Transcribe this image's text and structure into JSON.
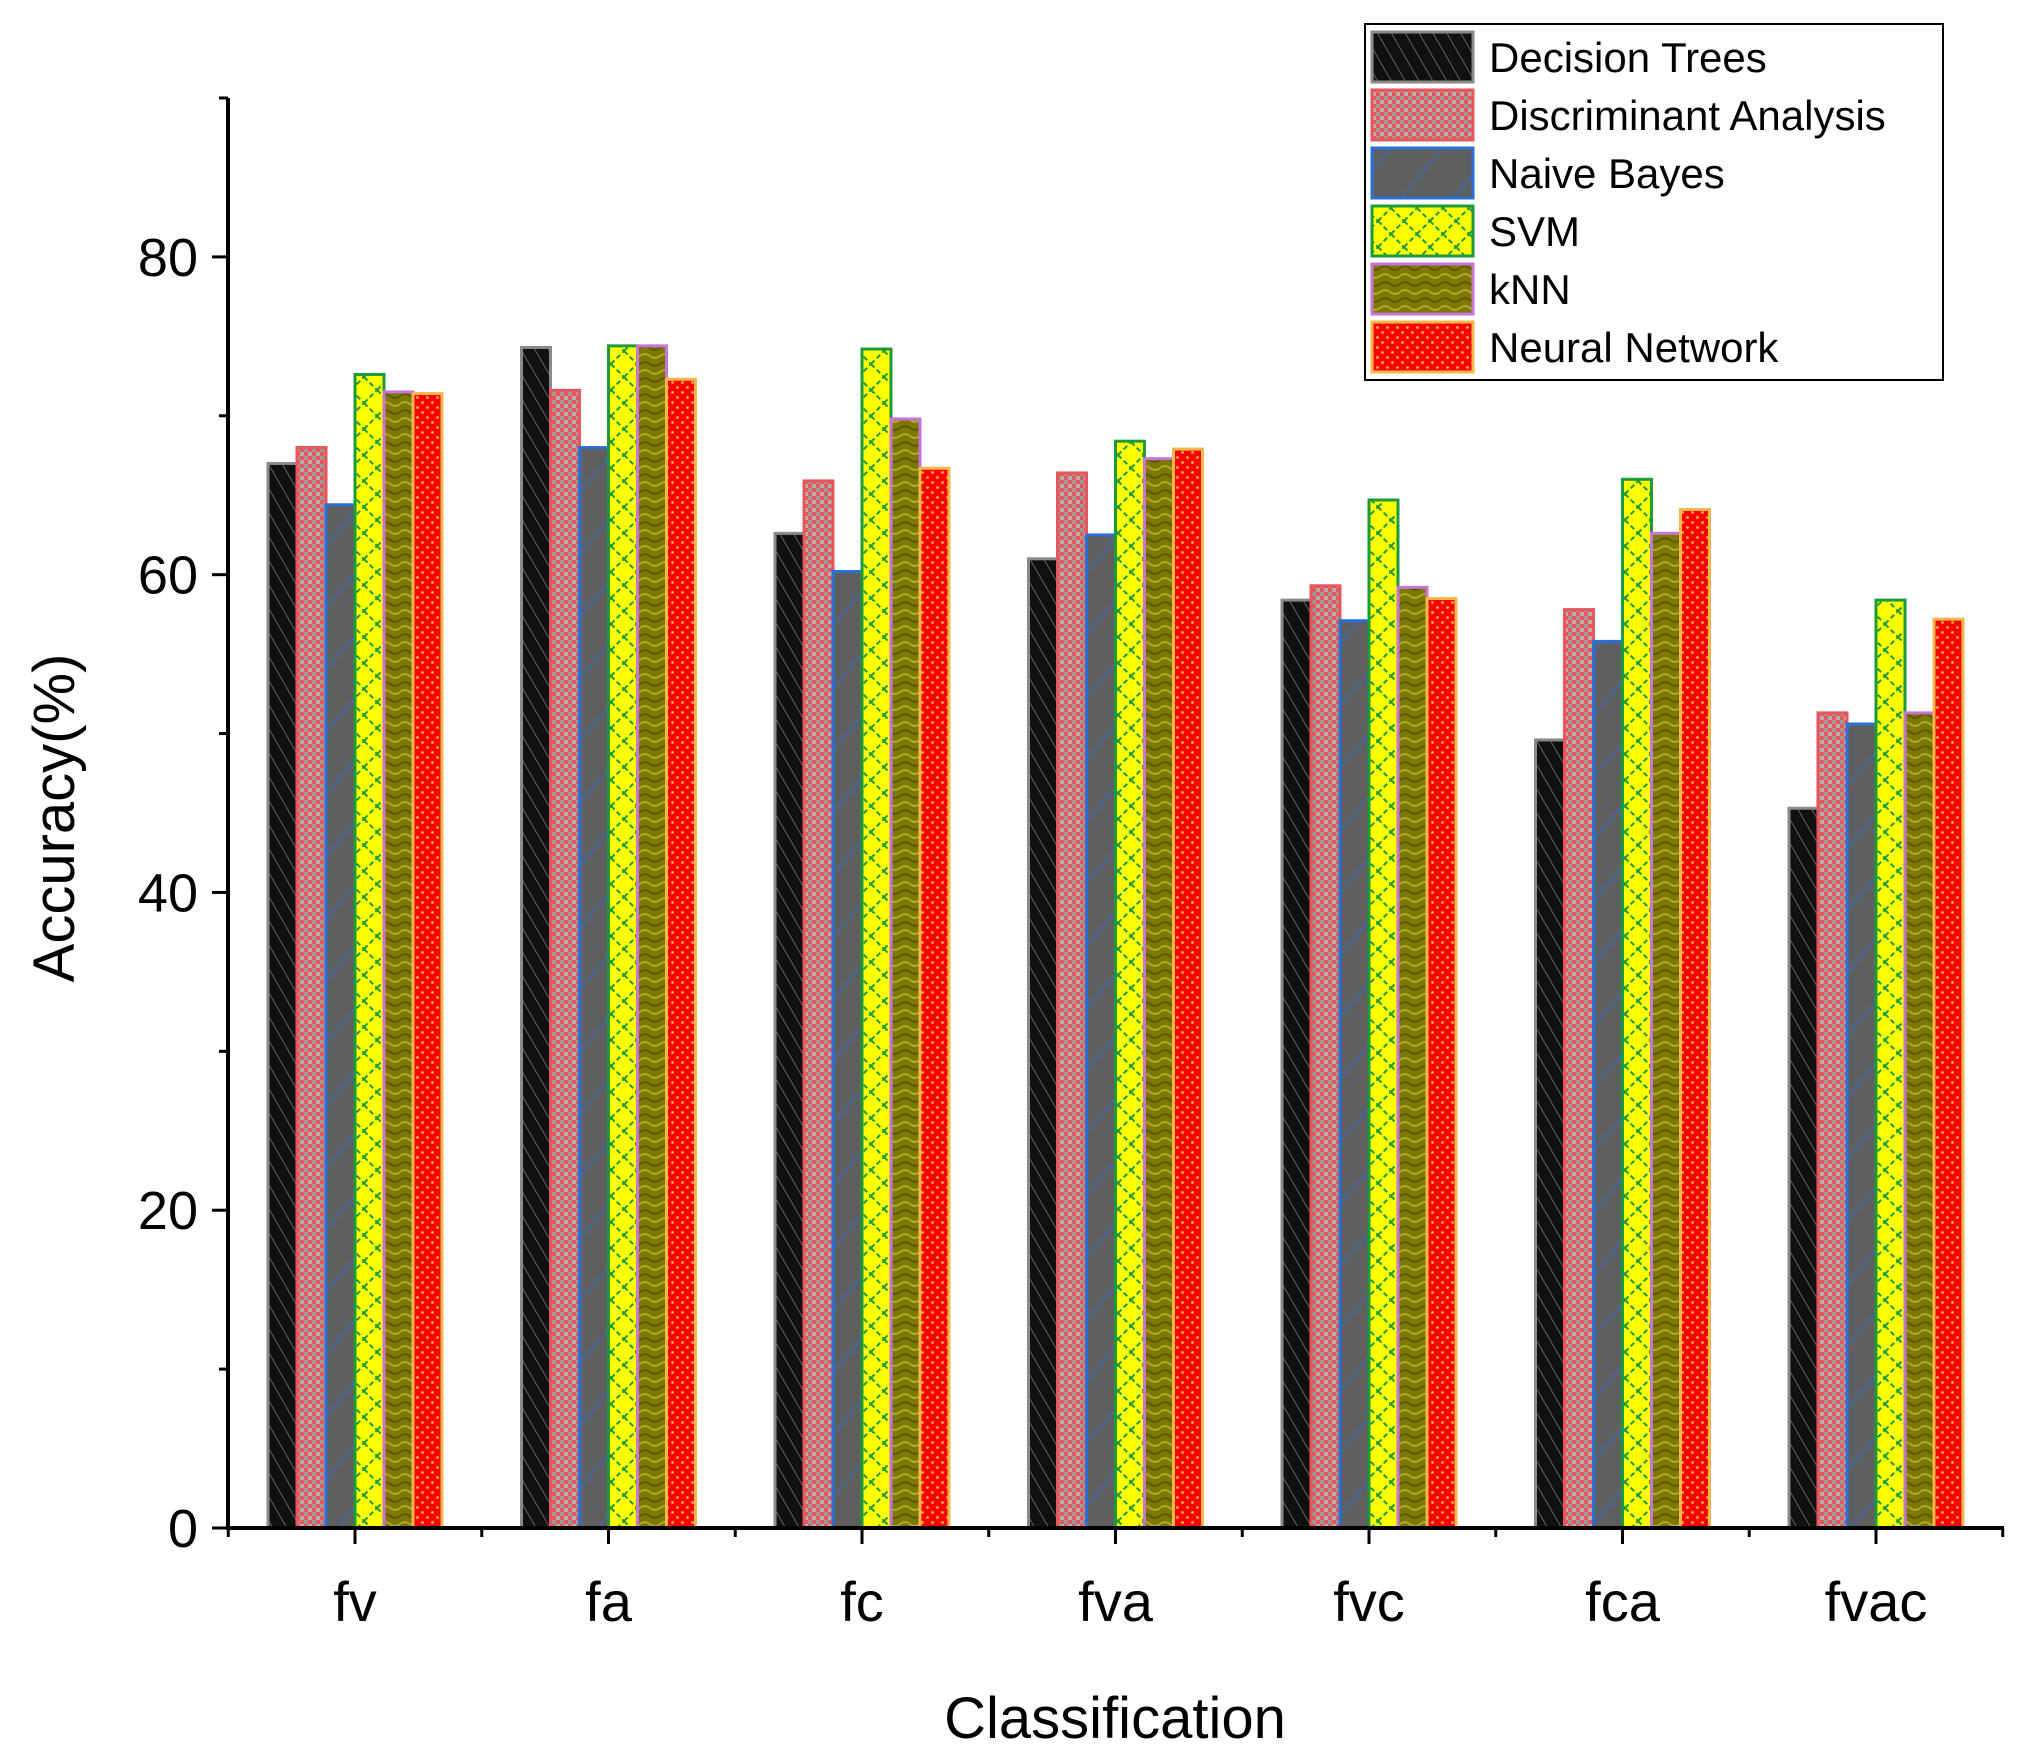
{
  "chart_data": {
    "type": "bar",
    "title": "",
    "xlabel": "Classification",
    "ylabel": "Accuracy(%)",
    "ylim": [
      0,
      90
    ],
    "yticks": [
      0,
      20,
      40,
      60,
      80
    ],
    "categories": [
      "fv",
      "fa",
      "fc",
      "fva",
      "fvc",
      "fca",
      "fvac"
    ],
    "legend_position": "top-right",
    "grid": false,
    "series": [
      {
        "name": "Decision Trees",
        "color": "#1a1a1a",
        "pattern": "diagonal-hatch",
        "values": [
          67.0,
          74.3,
          62.6,
          61.0,
          58.4,
          49.6,
          45.3
        ]
      },
      {
        "name": "Discriminant Analysis",
        "color": "#e8555a",
        "pattern": "checker",
        "values": [
          68.0,
          71.6,
          65.9,
          66.4,
          59.3,
          57.8,
          51.3
        ]
      },
      {
        "name": "Naive Bayes",
        "color": "#5f5f5f",
        "pattern": "blue-diagonal",
        "values": [
          64.4,
          68.0,
          60.2,
          62.5,
          57.1,
          55.8,
          50.6
        ]
      },
      {
        "name": "SVM",
        "color": "#ffff00",
        "pattern": "green-lattice",
        "values": [
          72.6,
          74.4,
          74.2,
          68.4,
          64.7,
          66.0,
          58.4
        ]
      },
      {
        "name": "kNN",
        "color": "#807a00",
        "pattern": "dashed-wave",
        "values": [
          71.5,
          74.4,
          69.8,
          67.3,
          59.2,
          62.6,
          51.3
        ]
      },
      {
        "name": "Neural Network",
        "color": "#ff0000",
        "pattern": "dotted",
        "values": [
          71.4,
          72.3,
          66.7,
          67.9,
          58.5,
          64.1,
          57.2
        ]
      }
    ]
  }
}
